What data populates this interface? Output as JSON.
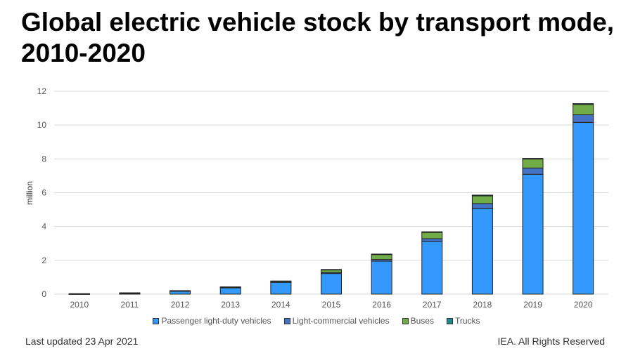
{
  "chart_data": {
    "type": "bar",
    "stacked": true,
    "title": "Global electric vehicle stock by transport mode, 2010-2020",
    "ylabel": "million",
    "xlabel": "",
    "ylim": [
      0,
      12
    ],
    "yticks": [
      0,
      2,
      4,
      6,
      8,
      10,
      12
    ],
    "grid": true,
    "legend_position": "bottom",
    "categories": [
      "2010",
      "2011",
      "2012",
      "2013",
      "2014",
      "2015",
      "2016",
      "2017",
      "2018",
      "2019",
      "2020"
    ],
    "series": [
      {
        "name": "Passenger light-duty vehicles",
        "color": "#3399ff",
        "values": [
          0.02,
          0.06,
          0.18,
          0.38,
          0.7,
          1.22,
          1.95,
          3.11,
          5.05,
          7.09,
          10.16
        ]
      },
      {
        "name": "Light-commercial vehicles",
        "color": "#4472c4",
        "values": [
          0.005,
          0.01,
          0.02,
          0.02,
          0.03,
          0.06,
          0.1,
          0.17,
          0.31,
          0.37,
          0.45
        ]
      },
      {
        "name": "Buses",
        "color": "#70ad47",
        "values": [
          0.001,
          0.01,
          0.01,
          0.03,
          0.05,
          0.17,
          0.3,
          0.37,
          0.45,
          0.53,
          0.61
        ]
      },
      {
        "name": "Trucks",
        "color": "#1f8a8a",
        "values": [
          0,
          0,
          0,
          0,
          0,
          0.01,
          0.02,
          0.04,
          0.05,
          0.04,
          0.05
        ]
      }
    ]
  },
  "footer": {
    "updated": "Last updated 23 Apr 2021",
    "copyright": "IEA. All Rights Reserved"
  }
}
